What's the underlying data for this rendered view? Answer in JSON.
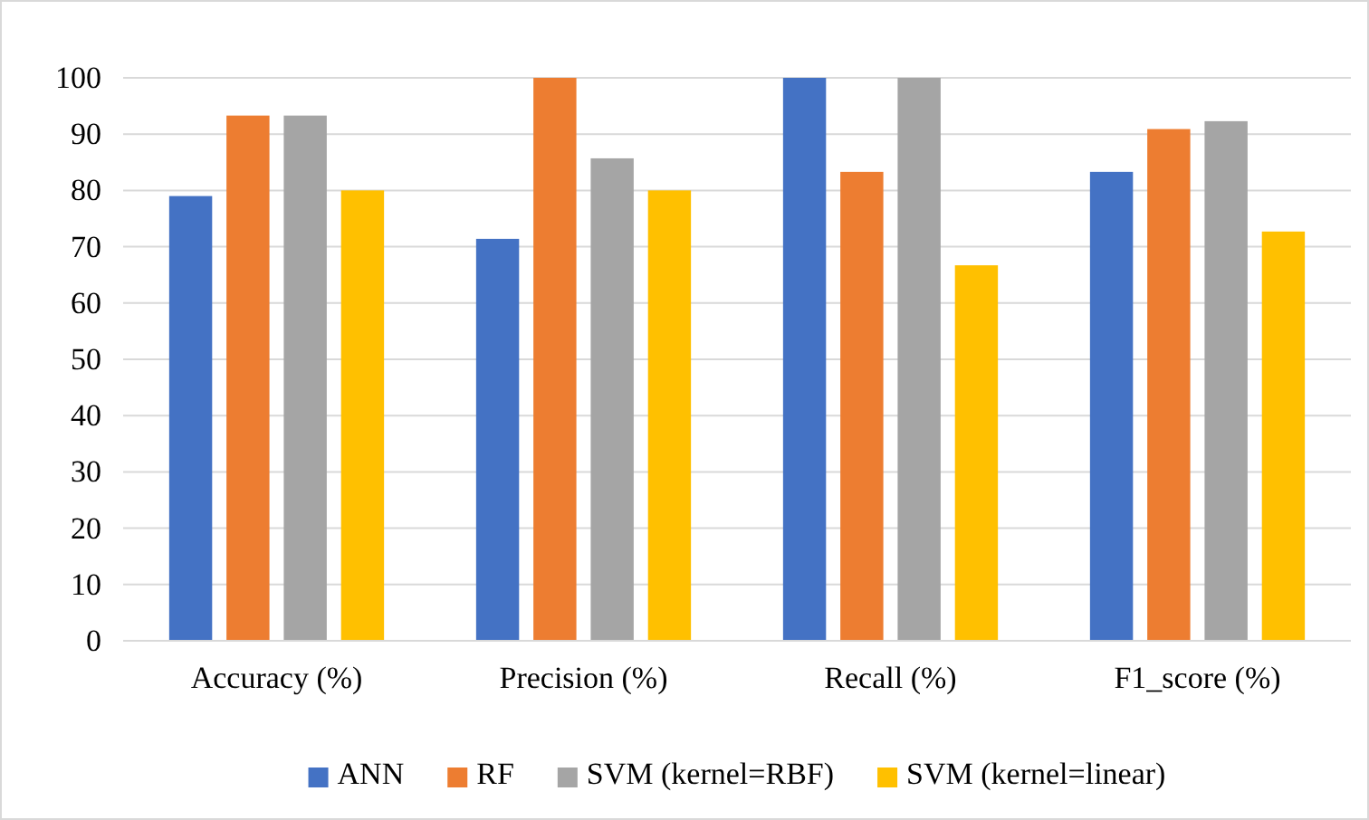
{
  "chart_data": {
    "type": "bar",
    "categories": [
      "Accuracy (%)",
      "Precision (%)",
      "Recall (%)",
      "F1_score (%)"
    ],
    "series": [
      {
        "name": "ANN",
        "color": "#4472c4",
        "values": [
          79,
          71.4,
          100,
          83.3
        ]
      },
      {
        "name": "RF",
        "color": "#ed7d31",
        "values": [
          93.3,
          100,
          83.3,
          90.9
        ]
      },
      {
        "name": "SVM (kernel=RBF)",
        "color": "#a5a5a5",
        "values": [
          93.3,
          85.7,
          100,
          92.3
        ]
      },
      {
        "name": "SVM (kernel=linear)",
        "color": "#ffc000",
        "values": [
          80,
          80,
          66.7,
          72.7
        ]
      }
    ],
    "ylim": [
      0,
      100
    ],
    "yticks": [
      0,
      10,
      20,
      30,
      40,
      50,
      60,
      70,
      80,
      90,
      100
    ],
    "grid": "y",
    "legend": "bottom"
  }
}
